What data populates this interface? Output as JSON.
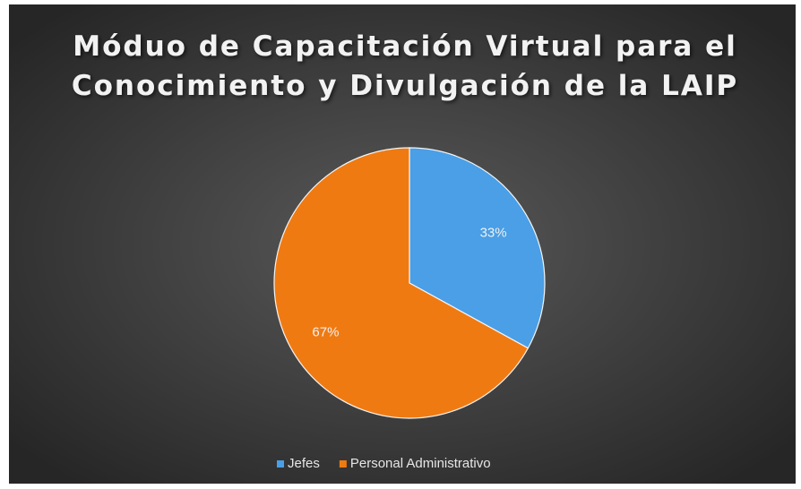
{
  "chart_data": {
    "type": "pie",
    "title": [
      "Móduo de Capacitación Virtual para el",
      "Conocimiento y Divulgación de la LAIP"
    ],
    "categories": [
      "Jefes",
      "Personal Administrativo"
    ],
    "values": [
      33,
      67
    ],
    "value_labels": [
      "33%",
      "67%"
    ],
    "colors": [
      "#4a9fe6",
      "#f07a12"
    ],
    "legend": "bottom"
  }
}
